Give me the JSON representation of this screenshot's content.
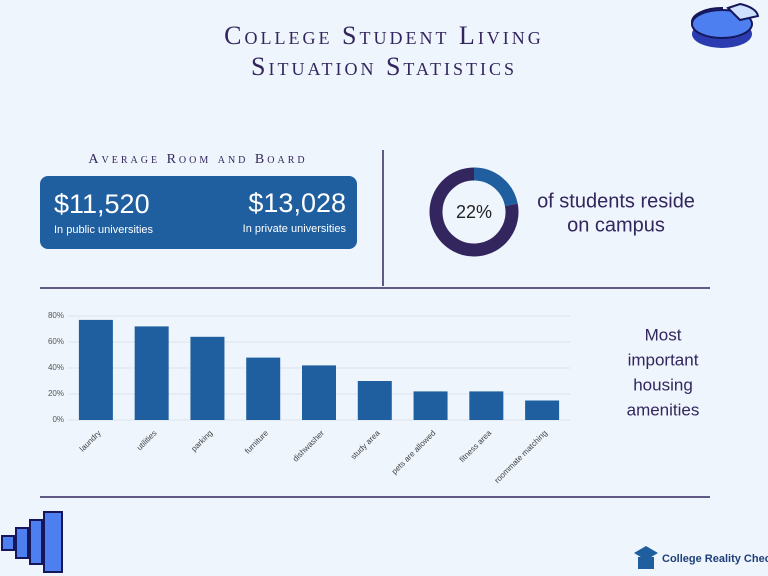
{
  "title": [
    "College Student Living",
    "Situation Statistics"
  ],
  "room_board": {
    "heading": "Average Room and Board",
    "items": [
      {
        "amount": "$11,520",
        "note": "In public universities"
      },
      {
        "amount": "$13,028",
        "note": "In private universities"
      }
    ]
  },
  "chart_data": [
    {
      "type": "donut",
      "values": [
        22,
        78
      ],
      "value_labels": [
        "22%",
        null
      ],
      "colors": [
        "#1f5fa0",
        "#33265e"
      ],
      "caption": [
        "of students reside",
        "on campus"
      ]
    },
    {
      "type": "bar",
      "title": [
        "Most",
        "important",
        "housing",
        "amenities"
      ],
      "categories": [
        "laundry",
        "utilities",
        "parking",
        "furniture",
        "dishwasher",
        "study area",
        "pets are allowed",
        "fitness area",
        "roommate matching"
      ],
      "values": [
        77,
        72,
        64,
        48,
        42,
        30,
        22,
        22,
        15
      ],
      "color": "#1f5fa0",
      "ylim": [
        0,
        80
      ],
      "yticks": [
        {
          "value": 0,
          "label": "0%"
        },
        {
          "value": 20,
          "label": "20%"
        },
        {
          "value": 40,
          "label": "40%"
        },
        {
          "value": 60,
          "label": "60%"
        },
        {
          "value": 80,
          "label": "80%"
        }
      ],
      "grid": true
    }
  ],
  "brand": "College Reality Check"
}
